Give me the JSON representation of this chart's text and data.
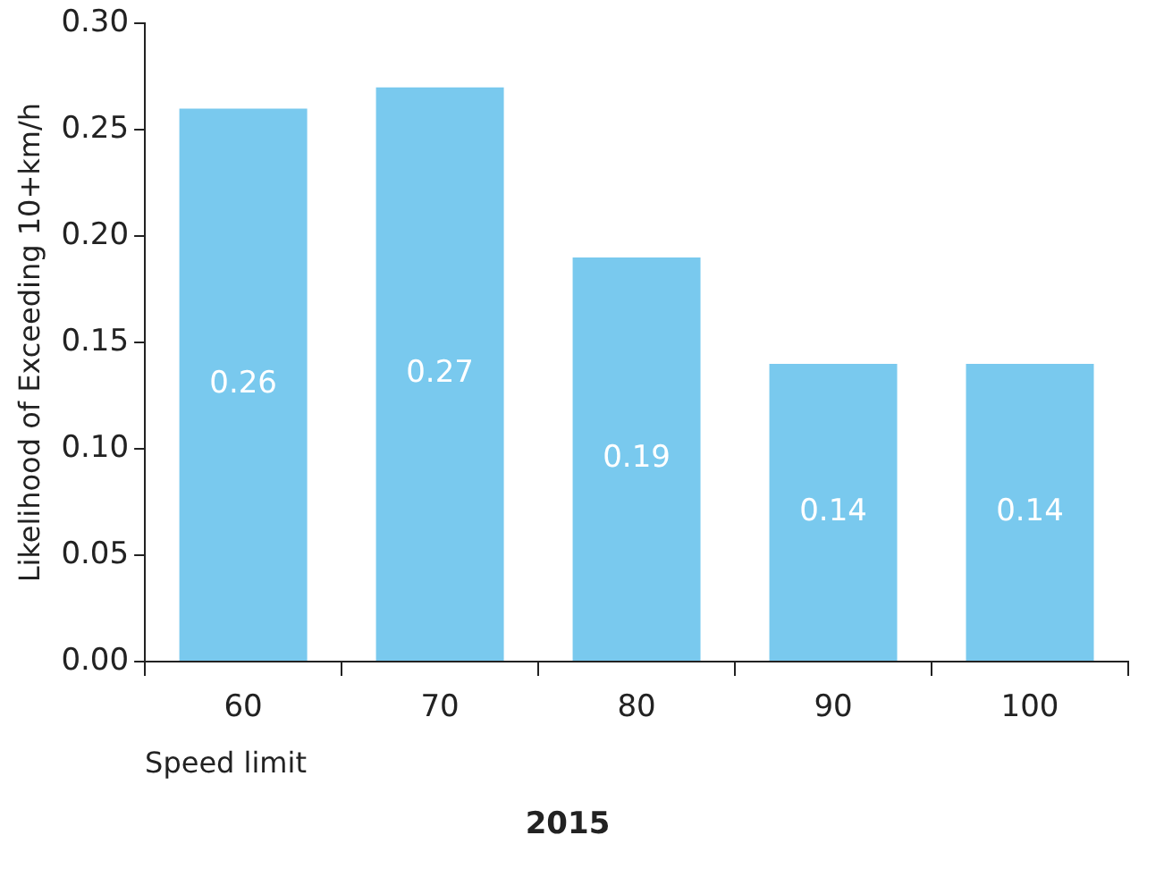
{
  "chart_data": {
    "type": "bar",
    "title": "2015",
    "xlabel": "Speed limit",
    "ylabel": "Likelihood of Exceeding 10+km/h",
    "categories": [
      "60",
      "70",
      "80",
      "90",
      "100"
    ],
    "values": [
      0.26,
      0.27,
      0.19,
      0.14,
      0.14
    ],
    "color": "#79c9ee",
    "ylim": [
      0,
      0.3
    ],
    "yticks": [
      {
        "value": 0,
        "label": "0.00"
      },
      {
        "value": 0.05,
        "label": "0.05"
      },
      {
        "value": 0.1,
        "label": "0.10"
      },
      {
        "value": 0.15,
        "label": "0.15"
      },
      {
        "value": 0.2,
        "label": "0.20"
      },
      {
        "value": 0.25,
        "label": "0.25"
      },
      {
        "value": 0.3,
        "label": "0.30"
      }
    ],
    "grid": false,
    "legend": false,
    "data_labels": true
  }
}
